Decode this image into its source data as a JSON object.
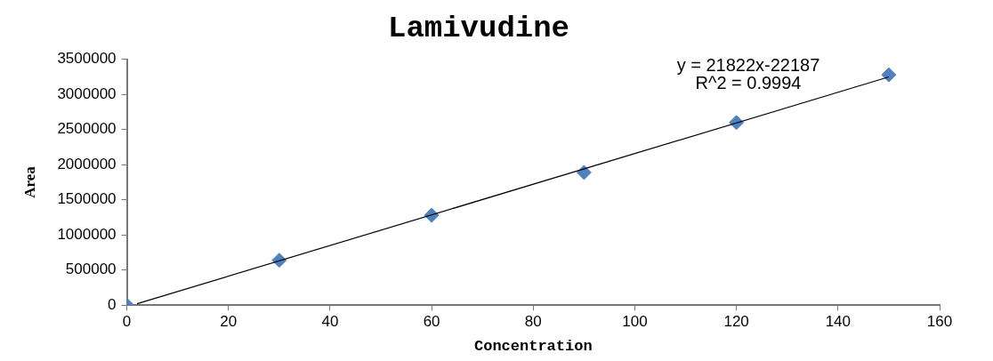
{
  "chart_data": {
    "type": "scatter",
    "title": "Lamivudine",
    "xlabel": "Concentration",
    "ylabel": "Area",
    "annotations": [
      "y = 21822x-22187",
      "R^2 = 0.9994"
    ],
    "series": [
      {
        "color": "#4f81bd",
        "marker": "diamond",
        "x": [
          0,
          30,
          60,
          90,
          120,
          150
        ],
        "values": [
          0,
          640000,
          1280000,
          1890000,
          2600000,
          3280000
        ]
      },
      {
        "type": "line",
        "color": "#000000",
        "marker": "none",
        "line_style": "solid",
        "x": [
          2,
          150
        ],
        "values": [
          20000,
          3250000
        ]
      }
    ],
    "xlim": [
      0,
      160
    ],
    "xticks": [
      0,
      20,
      40,
      60,
      80,
      100,
      120,
      140,
      160
    ],
    "ylim": [
      0,
      3500000
    ],
    "yticks": [
      0,
      500000,
      1000000,
      1500000,
      2000000,
      2500000,
      3000000,
      3500000
    ],
    "grid": false,
    "legend": false
  }
}
